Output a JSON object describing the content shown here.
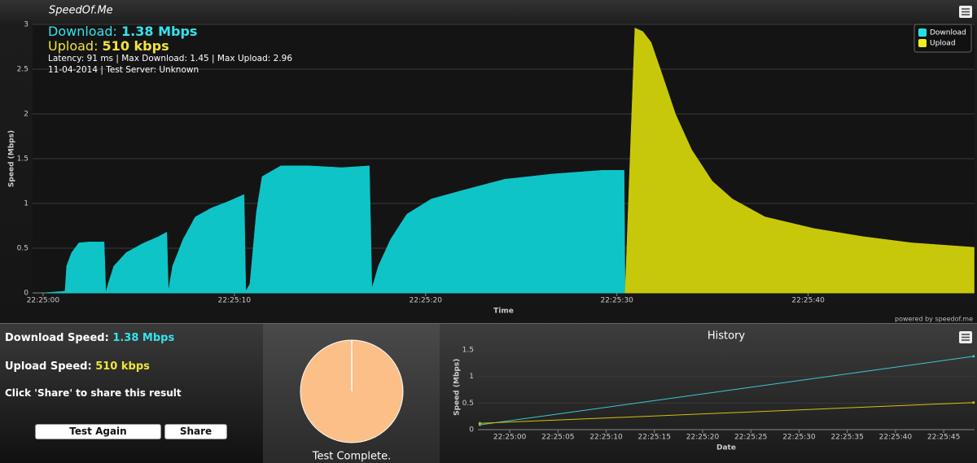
{
  "header": {
    "title": "SpeedOf.Me"
  },
  "summary": {
    "download_label": "Download:",
    "download_value": "1.38 Mbps",
    "upload_label": "Upload:",
    "upload_value": "510 kbps",
    "details": "Latency: 91 ms | Max Download: 1.45 | Max Upload: 2.96",
    "date_server": "11-04-2014 | Test Server: Unknown"
  },
  "credit": "powered by speedof.me",
  "chart_data": [
    {
      "type": "area",
      "x_label": "Time",
      "y_label": "Speed (Mbps)",
      "xlim": [
        -0.55,
        48.7
      ],
      "ylim": [
        0,
        3
      ],
      "xticks": [
        {
          "value": 0,
          "label": "22:25:00"
        },
        {
          "value": 10,
          "label": "22:25:10"
        },
        {
          "value": 20,
          "label": "22:25:20"
        },
        {
          "value": 30,
          "label": "22:25:30"
        },
        {
          "value": 40,
          "label": "22:25:40"
        }
      ],
      "yticks": [
        0,
        0.5,
        1,
        1.5,
        2,
        2.5,
        3
      ],
      "grid": true,
      "legend": "top-right",
      "series": [
        {
          "name": "Download",
          "color": "#0fc4c6",
          "x": [
            0,
            1.15,
            1.23,
            1.49,
            1.87,
            2.43,
            3.19,
            3.28,
            3.4,
            3.7,
            4.34,
            5.19,
            6.04,
            6.47,
            6.55,
            6.77,
            7.32,
            7.96,
            8.81,
            9.66,
            10.51,
            10.6,
            10.81,
            11.15,
            11.45,
            12.43,
            13.91,
            15.62,
            17.06,
            17.19,
            17.53,
            18.17,
            19.02,
            20.3,
            22,
            24.13,
            26.68,
            29.23,
            30.38,
            30.43
          ],
          "values": [
            0,
            0.02,
            0.3,
            0.45,
            0.56,
            0.57,
            0.57,
            0,
            0.1,
            0.3,
            0.45,
            0.55,
            0.63,
            0.68,
            0.02,
            0.3,
            0.6,
            0.85,
            0.95,
            1.02,
            1.1,
            0.02,
            0.1,
            0.9,
            1.3,
            1.42,
            1.42,
            1.4,
            1.42,
            0.05,
            0.3,
            0.6,
            0.88,
            1.05,
            1.15,
            1.27,
            1.33,
            1.37,
            1.37,
            0
          ]
        },
        {
          "name": "Upload",
          "color": "#c8c80a",
          "x": [
            30.43,
            30.94,
            31.36,
            31.79,
            32.43,
            33.06,
            33.91,
            34.98,
            36.04,
            37.74,
            40.3,
            42.85,
            45.4,
            48.68
          ],
          "values": [
            0,
            2.96,
            2.92,
            2.8,
            2.4,
            2,
            1.6,
            1.25,
            1.05,
            0.85,
            0.72,
            0.63,
            0.56,
            0.51
          ]
        }
      ]
    },
    {
      "type": "pie",
      "values": [
        100
      ],
      "color": "#fbbf87"
    },
    {
      "type": "line",
      "title": "History",
      "x_label": "Date",
      "y_label": "Speed (Mbps)",
      "xlim": [
        -3.3,
        48.2
      ],
      "ylim": [
        0,
        1.6
      ],
      "xticks": [
        {
          "value": 0,
          "label": "22:25:00"
        },
        {
          "value": 5,
          "label": "22:25:05"
        },
        {
          "value": 10,
          "label": "22:25:10"
        },
        {
          "value": 15,
          "label": "22:25:15"
        },
        {
          "value": 20,
          "label": "22:25:20"
        },
        {
          "value": 25,
          "label": "22:25:25"
        },
        {
          "value": 30,
          "label": "22:25:30"
        },
        {
          "value": 35,
          "label": "22:25:35"
        },
        {
          "value": 40,
          "label": "22:25:40"
        },
        {
          "value": 45,
          "label": "22:25:45"
        }
      ],
      "yticks": [
        0,
        0.5,
        1,
        1.5
      ],
      "grid": true,
      "series": [
        {
          "color": "#3cc8d0",
          "x": [
            -3.1,
            48.1
          ],
          "values": [
            0.09,
            1.38
          ]
        },
        {
          "color": "#d4c20a",
          "x": [
            -3.1,
            48.1
          ],
          "values": [
            0.12,
            0.51
          ]
        }
      ]
    }
  ],
  "results": {
    "download_label": "Download Speed:",
    "download_value": "1.38 Mbps",
    "upload_label": "Upload Speed:",
    "upload_value": "510 kbps",
    "share_hint": "Click 'Share' to share this result"
  },
  "buttons": {
    "test_again": "Test Again",
    "share": "Share"
  },
  "status": "Test Complete."
}
